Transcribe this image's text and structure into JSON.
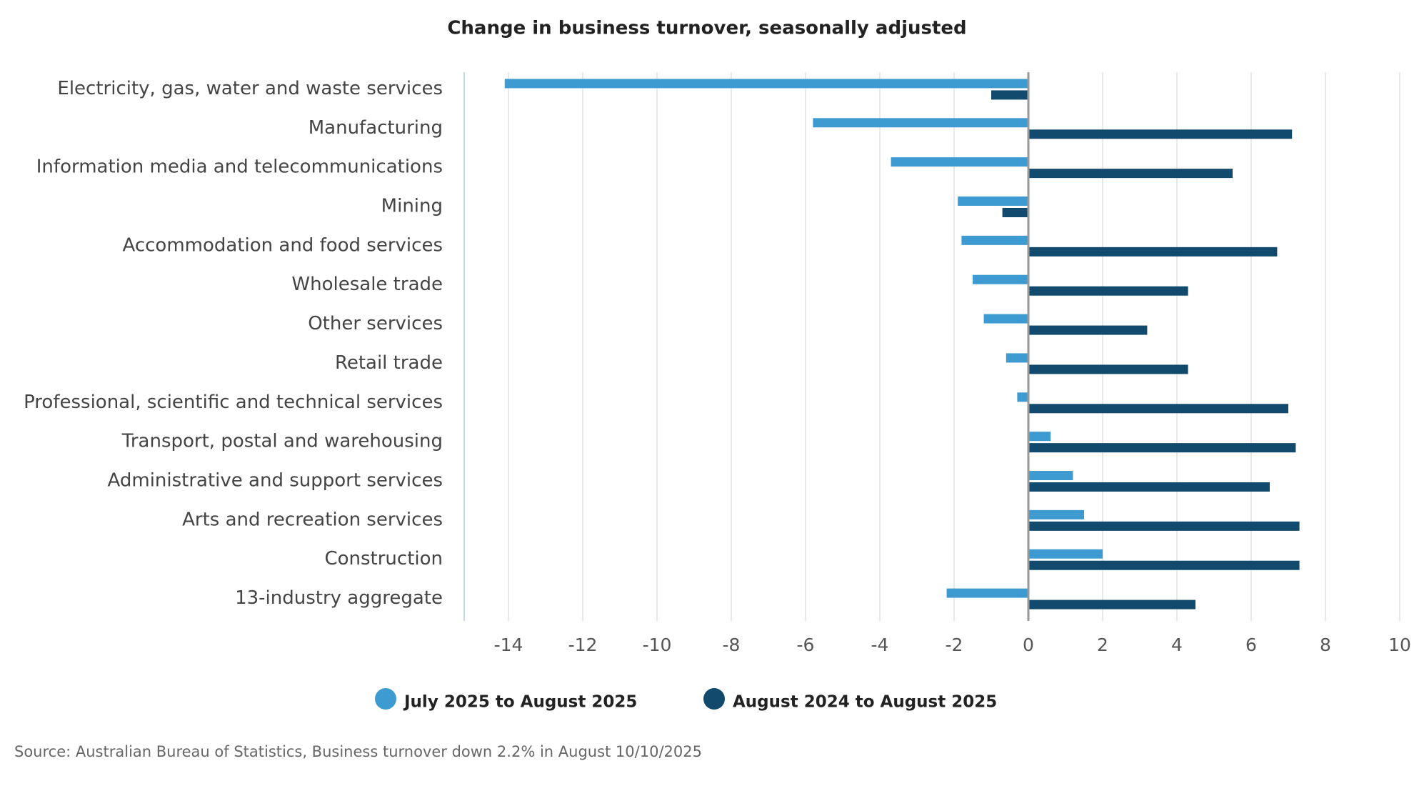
{
  "chart_data": {
    "type": "bar",
    "orientation": "horizontal",
    "title": "Change in business turnover, seasonally adjusted",
    "source": "Source: Australian Bureau of Statistics, Business turnover down 2.2% in August 10/10/2025",
    "categories": [
      "Electricity, gas, water and waste services",
      "Manufacturing",
      "Information media and telecommunications",
      "Mining",
      "Accommodation and food services",
      "Wholesale trade",
      "Other services",
      "Retail trade",
      "Professional, scientific and technical services",
      "Transport, postal and warehousing",
      "Administrative and support services",
      "Arts and recreation services",
      "Construction",
      "13-industry aggregate"
    ],
    "series": [
      {
        "name": "July 2025 to August 2025",
        "color": "#3d9bd1",
        "values": [
          -14.1,
          -5.8,
          -3.7,
          -1.9,
          -1.8,
          -1.5,
          -1.2,
          -0.6,
          -0.3,
          0.6,
          1.2,
          1.5,
          2.0,
          -2.2
        ]
      },
      {
        "name": "August 2024 to August 2025",
        "color": "#124a6e",
        "values": [
          -1.0,
          7.1,
          5.5,
          -0.7,
          6.7,
          4.3,
          3.2,
          4.3,
          7.0,
          7.2,
          6.5,
          7.3,
          7.3,
          4.5
        ]
      }
    ],
    "xlim": [
      -15,
      10
    ],
    "xticks": [
      -14,
      -12,
      -10,
      -8,
      -6,
      -4,
      -2,
      0,
      2,
      4,
      6,
      8,
      10
    ],
    "grid": true,
    "legend": "bottom"
  }
}
